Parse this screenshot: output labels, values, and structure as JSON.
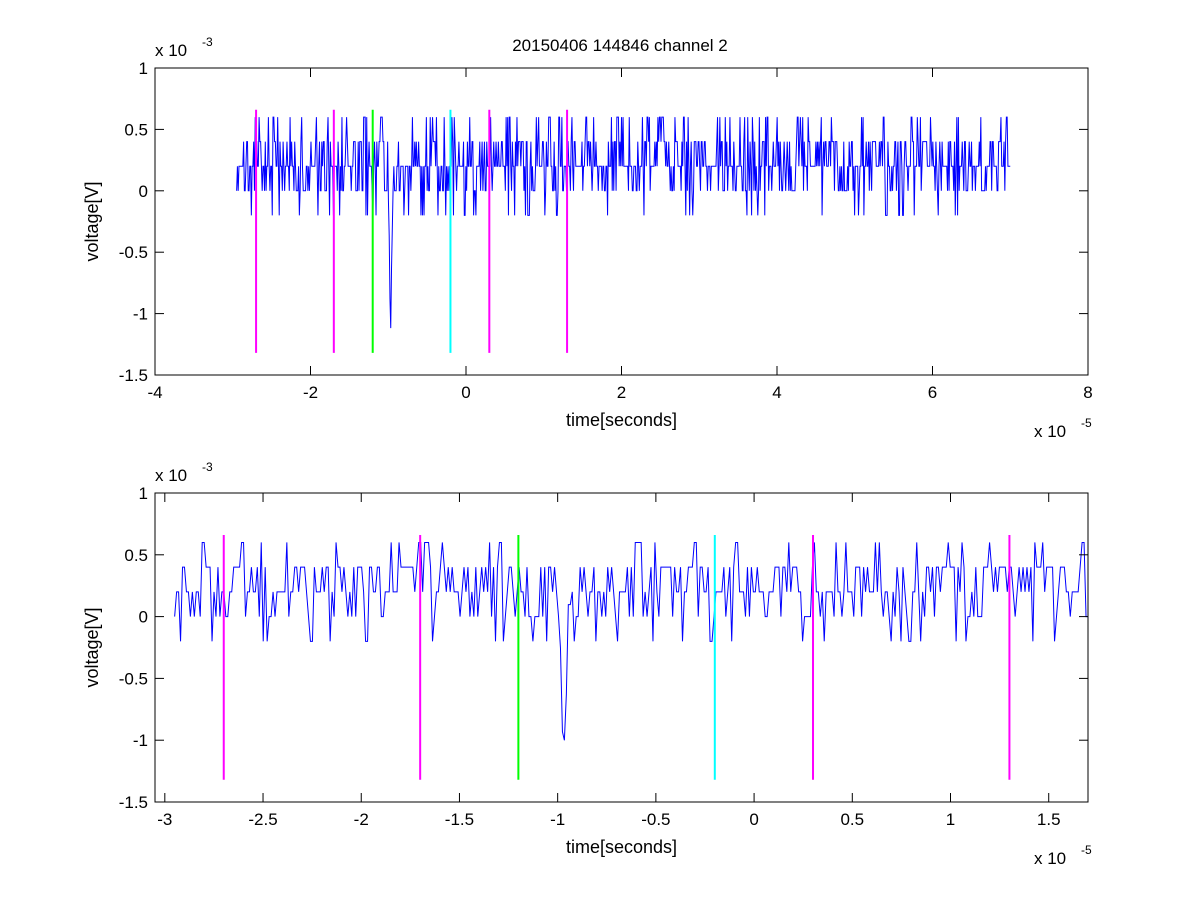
{
  "figure": {
    "title": "20150406 144846 channel 2"
  },
  "chart_data": [
    {
      "type": "line",
      "xlabel": "time[seconds]",
      "ylabel": "voltage[V]",
      "xlim": [
        -4e-05,
        8e-05
      ],
      "ylim": [
        -0.0015,
        0.001
      ],
      "x_ticks": [
        -4e-05,
        -2e-05,
        0,
        2e-05,
        4e-05,
        6e-05,
        8e-05
      ],
      "x_tick_labels": [
        "-4",
        "-2",
        "0",
        "2",
        "4",
        "6",
        "8"
      ],
      "x_exponent_label": "x 10",
      "x_exponent": "-5",
      "y_ticks": [
        -0.0015,
        -0.001,
        -0.0005,
        0,
        0.0005,
        0.001
      ],
      "y_tick_labels": [
        "-1.5",
        "-1",
        "-0.5",
        "0",
        "0.5",
        "1"
      ],
      "y_exponent_label": "x 10",
      "y_exponent": "-3",
      "series": [
        {
          "color": "#0000ff",
          "x_start": -2.95e-05,
          "x_end": 7e-05,
          "samples": 1000,
          "baseline": 0.0002,
          "quantum": 0.0002,
          "min": -0.0012,
          "max": 0.0006,
          "spike_at": -9.7e-06,
          "spike_min": -0.0012
        }
      ],
      "markers": [
        {
          "x": -2.7e-05,
          "color": "#ff00ff",
          "y_from": -0.00132,
          "y_to": 0.00066
        },
        {
          "x": -1.7e-05,
          "color": "#ff00ff",
          "y_from": -0.00132,
          "y_to": 0.00066
        },
        {
          "x": -1.2e-05,
          "color": "#00ff00",
          "y_from": -0.00132,
          "y_to": 0.00066
        },
        {
          "x": -2e-06,
          "color": "#00ffff",
          "y_from": -0.00132,
          "y_to": 0.00066
        },
        {
          "x": 3e-06,
          "color": "#ff00ff",
          "y_from": -0.00132,
          "y_to": 0.00066
        },
        {
          "x": 1.3e-05,
          "color": "#ff00ff",
          "y_from": -0.00132,
          "y_to": 0.00066
        }
      ],
      "grid": false
    },
    {
      "type": "line",
      "xlabel": "time[seconds]",
      "ylabel": "voltage[V]",
      "xlim": [
        -3.05e-05,
        1.7e-05
      ],
      "ylim": [
        -0.0015,
        0.001
      ],
      "x_ticks": [
        -3e-05,
        -2.5e-05,
        -2e-05,
        -1.5e-05,
        -1e-05,
        -5e-06,
        0,
        5e-06,
        1e-05,
        1.5e-05
      ],
      "x_tick_labels": [
        "-3",
        "-2.5",
        "-2",
        "-1.5",
        "-1",
        "-0.5",
        "0",
        "0.5",
        "1",
        "1.5"
      ],
      "x_exponent_label": "x 10",
      "x_exponent": "-5",
      "y_ticks": [
        -0.0015,
        -0.001,
        -0.0005,
        0,
        0.0005,
        0.001
      ],
      "y_tick_labels": [
        "-1.5",
        "-1",
        "-0.5",
        "0",
        "0.5",
        "1"
      ],
      "y_exponent_label": "x 10",
      "y_exponent": "-3",
      "series": [
        {
          "color": "#0000ff",
          "x_start": -2.95e-05,
          "x_end": 1.7e-05,
          "samples": 465,
          "baseline": 0.0002,
          "quantum": 0.0002,
          "min": -0.0012,
          "max": 0.0006,
          "spike_at": -9.7e-06,
          "spike_min": -0.0012
        }
      ],
      "markers": [
        {
          "x": -2.7e-05,
          "color": "#ff00ff",
          "y_from": -0.00132,
          "y_to": 0.00066
        },
        {
          "x": -1.7e-05,
          "color": "#ff00ff",
          "y_from": -0.00132,
          "y_to": 0.00066
        },
        {
          "x": -1.2e-05,
          "color": "#00ff00",
          "y_from": -0.00132,
          "y_to": 0.00066
        },
        {
          "x": -2e-06,
          "color": "#00ffff",
          "y_from": -0.00132,
          "y_to": 0.00066
        },
        {
          "x": 3e-06,
          "color": "#ff00ff",
          "y_from": -0.00132,
          "y_to": 0.00066
        },
        {
          "x": 1.3e-05,
          "color": "#ff00ff",
          "y_from": -0.00132,
          "y_to": 0.00066
        }
      ],
      "grid": false
    }
  ]
}
